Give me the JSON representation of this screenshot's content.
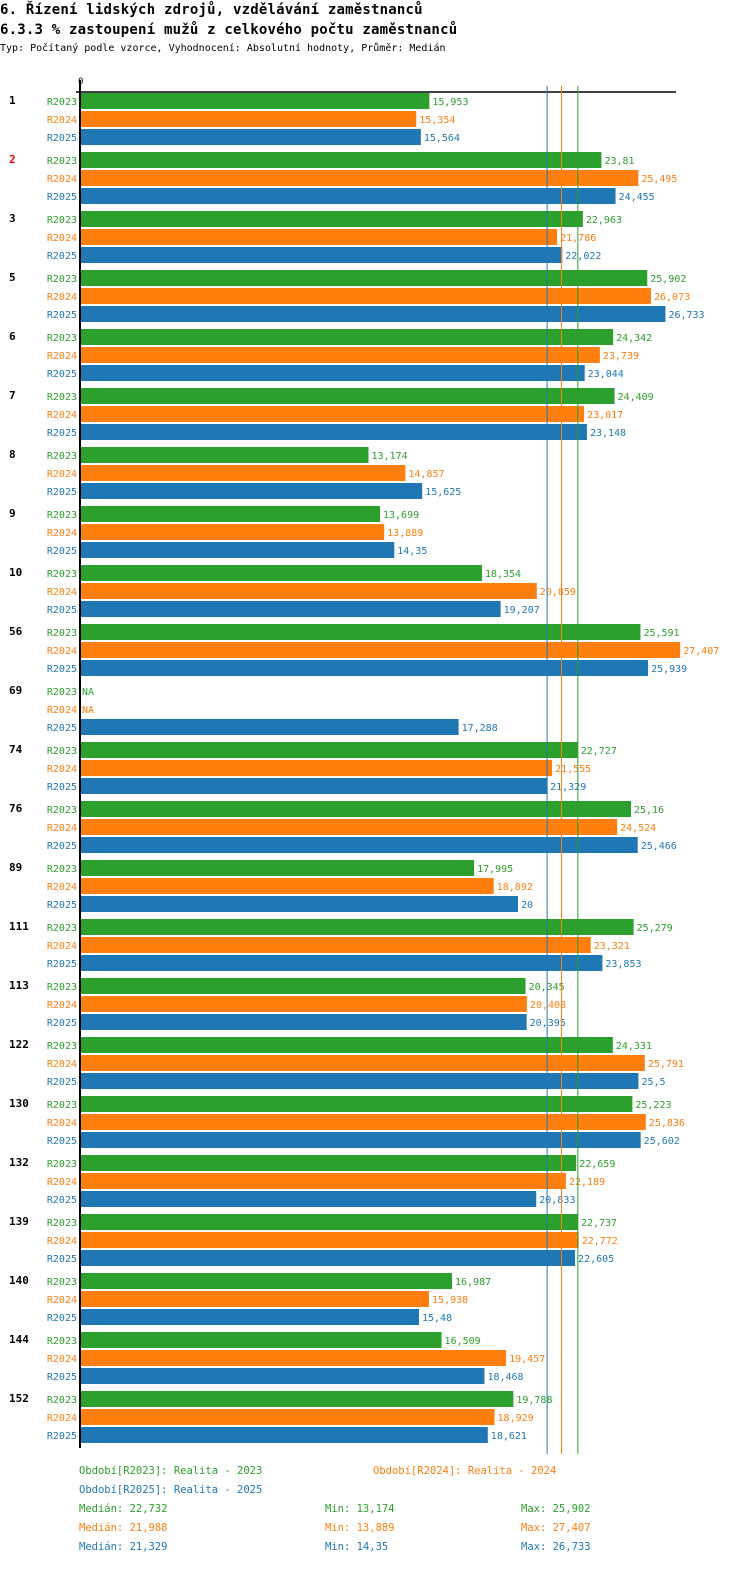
{
  "header": {
    "title": "6. Řízení lidských zdrojů, vzdělávání zaměstnanců",
    "subtitle": "6.3.3 % zastoupení mužů z celkového počtu zaměstnanců",
    "meta": "Typ: Počítaný podle vzorce, Vyhodnocení: Absolutní hodnoty, Průměr: Medián"
  },
  "colors": {
    "R2023": "#2ca02c",
    "R2024": "#ff7f0e",
    "R2025": "#1f77b4",
    "highlight_group": "#ff0000",
    "axis": "#000000"
  },
  "chart_data": {
    "type": "bar",
    "orientation": "horizontal",
    "title": "6.3.3 % zastoupení mužů z celkového počtu zaměstnanců",
    "xlabel": "",
    "ylabel": "",
    "xlim": [
      0,
      27.407
    ],
    "x_tick_labels": [
      "0"
    ],
    "grid": false,
    "categories": [
      "1",
      "2",
      "3",
      "5",
      "6",
      "7",
      "8",
      "9",
      "10",
      "56",
      "69",
      "74",
      "76",
      "89",
      "111",
      "113",
      "122",
      "130",
      "132",
      "139",
      "140",
      "144",
      "152"
    ],
    "highlighted_categories": [
      "2"
    ],
    "series": [
      {
        "name": "R2023",
        "color": "#2ca02c",
        "values": [
          15.953,
          23.81,
          22.963,
          25.902,
          24.342,
          24.409,
          13.174,
          13.699,
          18.354,
          25.591,
          null,
          22.727,
          25.16,
          17.995,
          25.279,
          20.345,
          24.331,
          25.223,
          22.659,
          22.737,
          16.987,
          16.509,
          19.788
        ],
        "labels": [
          "15,953",
          "23,81",
          "22,963",
          "25,902",
          "24,342",
          "24,409",
          "13,174",
          "13,699",
          "18,354",
          "25,591",
          "NA",
          "22,727",
          "25,16",
          "17,995",
          "25,279",
          "20,345",
          "24,331",
          "25,223",
          "22,659",
          "22,737",
          "16,987",
          "16,509",
          "19,788"
        ]
      },
      {
        "name": "R2024",
        "color": "#ff7f0e",
        "values": [
          15.354,
          25.495,
          21.786,
          26.073,
          23.739,
          23.017,
          14.857,
          13.889,
          20.859,
          27.407,
          null,
          21.555,
          24.524,
          18.892,
          23.321,
          20.408,
          25.791,
          25.836,
          22.189,
          22.772,
          15.938,
          19.457,
          18.929
        ],
        "labels": [
          "15,354",
          "25,495",
          "21,786",
          "26,073",
          "23,739",
          "23,017",
          "14,857",
          "13,889",
          "20,859",
          "27,407",
          "NA",
          "21,555",
          "24,524",
          "18,892",
          "23,321",
          "20,408",
          "25,791",
          "25,836",
          "22,189",
          "22,772",
          "15,938",
          "19,457",
          "18,929"
        ]
      },
      {
        "name": "R2025",
        "color": "#1f77b4",
        "values": [
          15.564,
          24.455,
          22.022,
          26.733,
          23.044,
          23.148,
          15.625,
          14.35,
          19.207,
          25.939,
          17.288,
          21.329,
          25.466,
          20,
          23.853,
          20.395,
          25.5,
          25.602,
          20.833,
          22.605,
          15.48,
          18.468,
          18.621
        ],
        "labels": [
          "15,564",
          "24,455",
          "22,022",
          "26,733",
          "23,044",
          "23,148",
          "15,625",
          "14,35",
          "19,207",
          "25,939",
          "17,288",
          "21,329",
          "25,466",
          "20",
          "23,853",
          "20,395",
          "25,5",
          "25,602",
          "20,833",
          "22,605",
          "15,48",
          "18,468",
          "18,621"
        ]
      }
    ],
    "reference_lines": [
      {
        "series": "R2023",
        "type": "median",
        "value": 22.732
      },
      {
        "series": "R2024",
        "type": "median",
        "value": 21.988
      },
      {
        "series": "R2025",
        "type": "median",
        "value": 21.329
      }
    ],
    "legend": {
      "placement": "bottom",
      "periods": [
        {
          "series": "R2023",
          "text": "Období[R2023]: Realita - 2023"
        },
        {
          "series": "R2024",
          "text": "Období[R2024]: Realita - 2024"
        },
        {
          "series": "R2025",
          "text": "Období[R2025]: Realita - 2025"
        }
      ],
      "stats": [
        {
          "series": "R2023",
          "median": "Medián: 22,732",
          "min": "Min: 13,174",
          "max": "Max: 25,902"
        },
        {
          "series": "R2024",
          "median": "Medián: 21,988",
          "min": "Min: 13,889",
          "max": "Max: 27,407"
        },
        {
          "series": "R2025",
          "median": "Medián: 21,329",
          "min": "Min: 14,35",
          "max": "Max: 26,733"
        }
      ]
    }
  }
}
